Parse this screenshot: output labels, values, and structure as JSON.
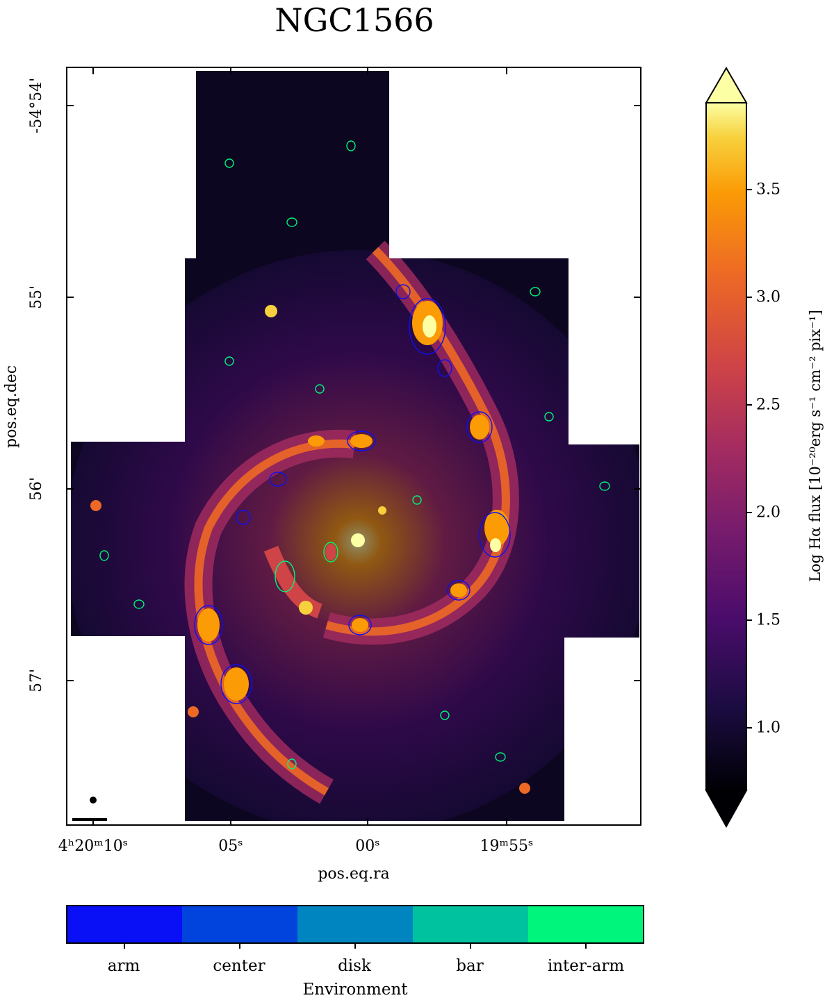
{
  "title": "NGC1566",
  "xlabel": "pos.eq.ra",
  "ylabel": "pos.eq.dec",
  "x_ticks": [
    "4ʰ20ᵐ10ˢ",
    "05ˢ",
    "00ˢ",
    "19ᵐ55ˢ"
  ],
  "y_ticks": [
    "-54°54'",
    "55'",
    "56'",
    "57'"
  ],
  "colorbar": {
    "label": "Log Hα flux [10⁻²⁰erg s⁻¹ cm⁻² pix⁻¹]",
    "ticks": [
      "1.0",
      "1.5",
      "2.0",
      "2.5",
      "3.0",
      "3.5"
    ],
    "tick_values": [
      1.0,
      1.5,
      2.0,
      2.5,
      3.0,
      3.5
    ],
    "range": [
      0.7,
      3.9
    ],
    "colormap": "inferno"
  },
  "environment_bar": {
    "label": "Environment",
    "categories": [
      "arm",
      "center",
      "disk",
      "bar",
      "inter-arm"
    ],
    "colors": [
      "#0a10f5",
      "#0043dd",
      "#0085c0",
      "#00c29f",
      "#00f57c"
    ]
  }
}
